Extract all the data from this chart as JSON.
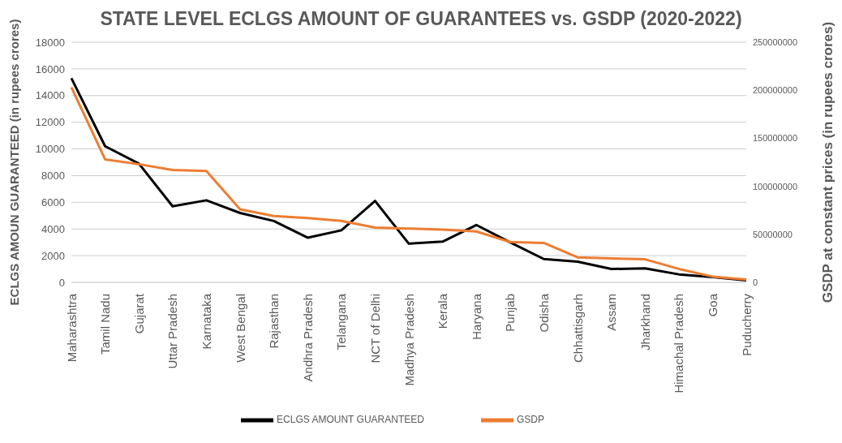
{
  "chart_data": {
    "type": "line",
    "title": "STATE LEVEL ECLGS AMOUNT OF GUARANTEES vs. GSDP (2020-2022)",
    "ylabel": "ECLGS AMOUN GUARANTEED (in rupees crores)",
    "y2label": "GSDP at constant prices (in rupees crores)",
    "categories": [
      "Maharashtra",
      "Tamil Nadu",
      "Gujarat",
      "Uttar Pradesh",
      "Karnataka",
      "West Bengal",
      "Rajasthan",
      "Andhra Pradesh",
      "Telangana",
      "NCT of Delhi",
      "Madhya Pradesh",
      "Kerala",
      "Haryana",
      "Punjab",
      "Odisha",
      "Chhattisgarh",
      "Assam",
      "Jharkhand",
      "Himachal Pradesh",
      "Goa",
      "Puducherry"
    ],
    "series": [
      {
        "name": "ECLGS AMOUNT GUARANTEED",
        "color": "#000000",
        "values": [
          15300,
          10200,
          8900,
          5700,
          6150,
          5200,
          4600,
          3350,
          3900,
          6100,
          2900,
          3050,
          4300,
          3000,
          1750,
          1550,
          1000,
          1050,
          600,
          400,
          150
        ]
      },
      {
        "name": "GSDP",
        "color": "#ed7d31",
        "axis": "y2",
        "values": [
          203000000,
          128000000,
          123000000,
          117000000,
          116000000,
          76000000,
          69000000,
          67000000,
          64000000,
          57000000,
          56000000,
          55000000,
          53000000,
          42000000,
          41000000,
          26000000,
          25000000,
          24000000,
          14000000,
          6000000,
          3000000
        ]
      }
    ],
    "ylim": [
      0,
      18000
    ],
    "yticks": [
      0,
      2000,
      4000,
      6000,
      8000,
      10000,
      12000,
      14000,
      16000,
      18000
    ],
    "y2lim": [
      0,
      250000000
    ],
    "y2ticks": [
      0,
      50000000,
      100000000,
      150000000,
      200000000,
      250000000
    ],
    "grid": "y",
    "legend": "bottom",
    "marker": "none",
    "line_style": "solid"
  }
}
